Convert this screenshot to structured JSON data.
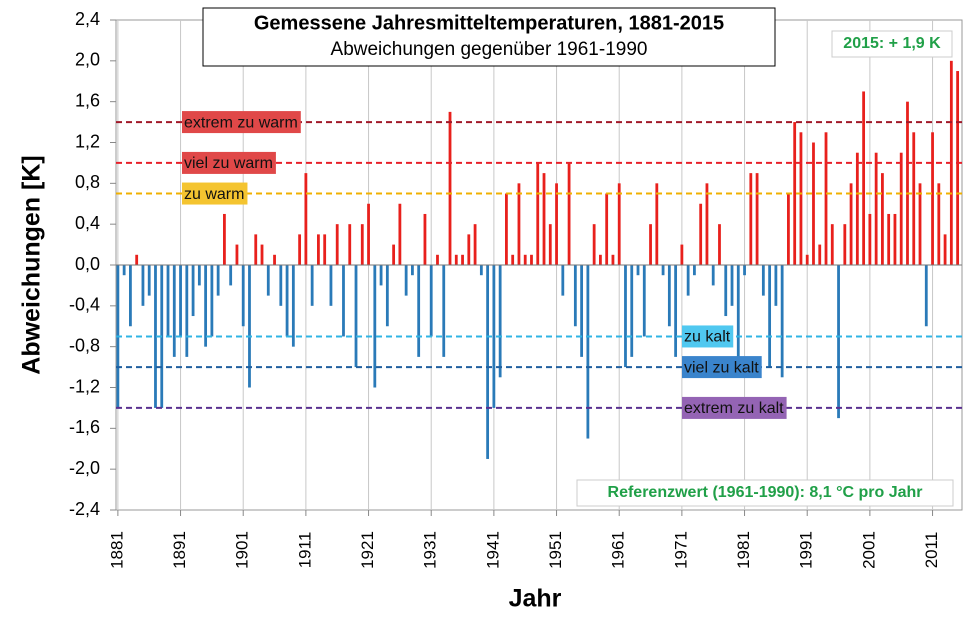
{
  "chart_data": {
    "type": "bar",
    "title": "Gemessene Jahresmitteltemperaturen,  1881-2015",
    "subtitle": "Abweichungen gegenüber 1961-1990",
    "x_label": "Jahr",
    "y_label": "Abweichungen [K]",
    "x": [
      1881,
      1882,
      1883,
      1884,
      1885,
      1886,
      1887,
      1888,
      1889,
      1890,
      1891,
      1892,
      1893,
      1894,
      1895,
      1896,
      1897,
      1898,
      1899,
      1900,
      1901,
      1902,
      1903,
      1904,
      1905,
      1906,
      1907,
      1908,
      1909,
      1910,
      1911,
      1912,
      1913,
      1914,
      1915,
      1916,
      1917,
      1918,
      1919,
      1920,
      1921,
      1922,
      1923,
      1924,
      1925,
      1926,
      1927,
      1928,
      1929,
      1930,
      1931,
      1932,
      1933,
      1934,
      1935,
      1936,
      1937,
      1938,
      1939,
      1940,
      1941,
      1942,
      1943,
      1944,
      1945,
      1946,
      1947,
      1948,
      1949,
      1950,
      1951,
      1952,
      1953,
      1954,
      1955,
      1956,
      1957,
      1958,
      1959,
      1960,
      1961,
      1962,
      1963,
      1964,
      1965,
      1966,
      1967,
      1968,
      1969,
      1970,
      1971,
      1972,
      1973,
      1974,
      1975,
      1976,
      1977,
      1978,
      1979,
      1980,
      1981,
      1982,
      1983,
      1984,
      1985,
      1986,
      1987,
      1988,
      1989,
      1990,
      1991,
      1992,
      1993,
      1994,
      1995,
      1996,
      1997,
      1998,
      1999,
      2000,
      2001,
      2002,
      2003,
      2004,
      2005,
      2006,
      2007,
      2008,
      2009,
      2010,
      2011,
      2012,
      2013,
      2014,
      2015
    ],
    "values": [
      -1.4,
      -0.1,
      -0.6,
      0.1,
      -0.4,
      -0.3,
      -1.4,
      -1.4,
      -0.7,
      -0.9,
      -0.7,
      -0.9,
      -0.5,
      -0.2,
      -0.8,
      -0.7,
      -0.3,
      0.5,
      -0.2,
      0.2,
      -0.6,
      -1.2,
      0.3,
      0.2,
      -0.3,
      0.1,
      -0.4,
      -0.7,
      -0.8,
      0.3,
      0.9,
      -0.4,
      0.3,
      0.3,
      -0.4,
      0.4,
      -0.7,
      0.4,
      -1.0,
      0.4,
      0.6,
      -1.2,
      -0.2,
      -0.6,
      0.2,
      0.6,
      -0.3,
      -0.1,
      -0.9,
      0.5,
      -0.7,
      0.1,
      -0.9,
      1.5,
      0.1,
      0.1,
      0.3,
      0.4,
      -0.1,
      -1.9,
      -1.4,
      -1.1,
      0.7,
      0.1,
      0.8,
      0.1,
      0.1,
      1.0,
      0.9,
      0.4,
      0.8,
      -0.3,
      1.0,
      -0.6,
      -0.9,
      -1.7,
      0.4,
      0.1,
      0.7,
      0.1,
      0.8,
      -1.0,
      -0.9,
      -0.1,
      -0.7,
      0.4,
      0.8,
      -0.1,
      -0.6,
      -0.9,
      0.2,
      -0.3,
      -0.1,
      0.6,
      0.8,
      -0.2,
      0.4,
      -0.5,
      -0.4,
      -0.9,
      -0.1,
      0.9,
      0.9,
      -0.3,
      -1.0,
      -0.4,
      -1.1,
      0.7,
      1.4,
      1.3,
      0.1,
      1.2,
      0.2,
      1.3,
      0.4,
      -1.5,
      0.4,
      0.8,
      1.1,
      1.7,
      0.5,
      1.1,
      0.9,
      0.5,
      0.5,
      1.1,
      1.6,
      1.3,
      0.8,
      -0.6,
      1.3,
      0.8,
      0.3,
      2.0,
      1.9
    ],
    "positive_color": "#e8201c",
    "negative_color": "#2a7ab8",
    "xlim": [
      1880.7,
      2015.7
    ],
    "xticks": [
      1881,
      1891,
      1901,
      1911,
      1921,
      1931,
      1941,
      1951,
      1961,
      1971,
      1981,
      1991,
      2001,
      2011
    ],
    "ylim": [
      -2.4,
      2.4
    ],
    "yticks": [
      {
        "value": 2.4,
        "label": "2,4"
      },
      {
        "value": 2.0,
        "label": "2,0"
      },
      {
        "value": 1.6,
        "label": "1,6"
      },
      {
        "value": 1.2,
        "label": "1,2"
      },
      {
        "value": 0.8,
        "label": "0,8"
      },
      {
        "value": 0.4,
        "label": "0,4"
      },
      {
        "value": 0,
        "label": "0,0"
      },
      {
        "value": -0.4,
        "label": "-0,4"
      },
      {
        "value": -0.8,
        "label": "-0,8"
      },
      {
        "value": -1.2,
        "label": "-1,2"
      },
      {
        "value": -1.6,
        "label": "-1,6"
      },
      {
        "value": -2.0,
        "label": "-2,0"
      },
      {
        "value": -2.4,
        "label": "-2,4"
      }
    ],
    "grid": true,
    "reference_lines": [
      {
        "value": 1.4,
        "label": "extrem zu warm",
        "color": "#a01828",
        "label_color": "#e04848"
      },
      {
        "value": 1.0,
        "label": "viel zu warm",
        "color": "#e8202a",
        "label_color": "#e04848"
      },
      {
        "value": 0.7,
        "label": "zu warm",
        "color": "#f0b000",
        "label_color": "#f4c430"
      },
      {
        "value": -0.7,
        "label": "zu kalt",
        "color": "#30b4e4",
        "label_color": "#50c8f0"
      },
      {
        "value": -1.0,
        "label": "viel zu kalt",
        "color": "#1f5f9f",
        "label_color": "#3a84cc"
      },
      {
        "value": -1.4,
        "label": "extrem zu kalt",
        "color": "#5a3090",
        "label_color": "#9464b4"
      }
    ],
    "annotations": [
      "2015: + 1,9 K",
      "Referenzwert (1961-1990): 8,1 °C pro Jahr"
    ]
  }
}
